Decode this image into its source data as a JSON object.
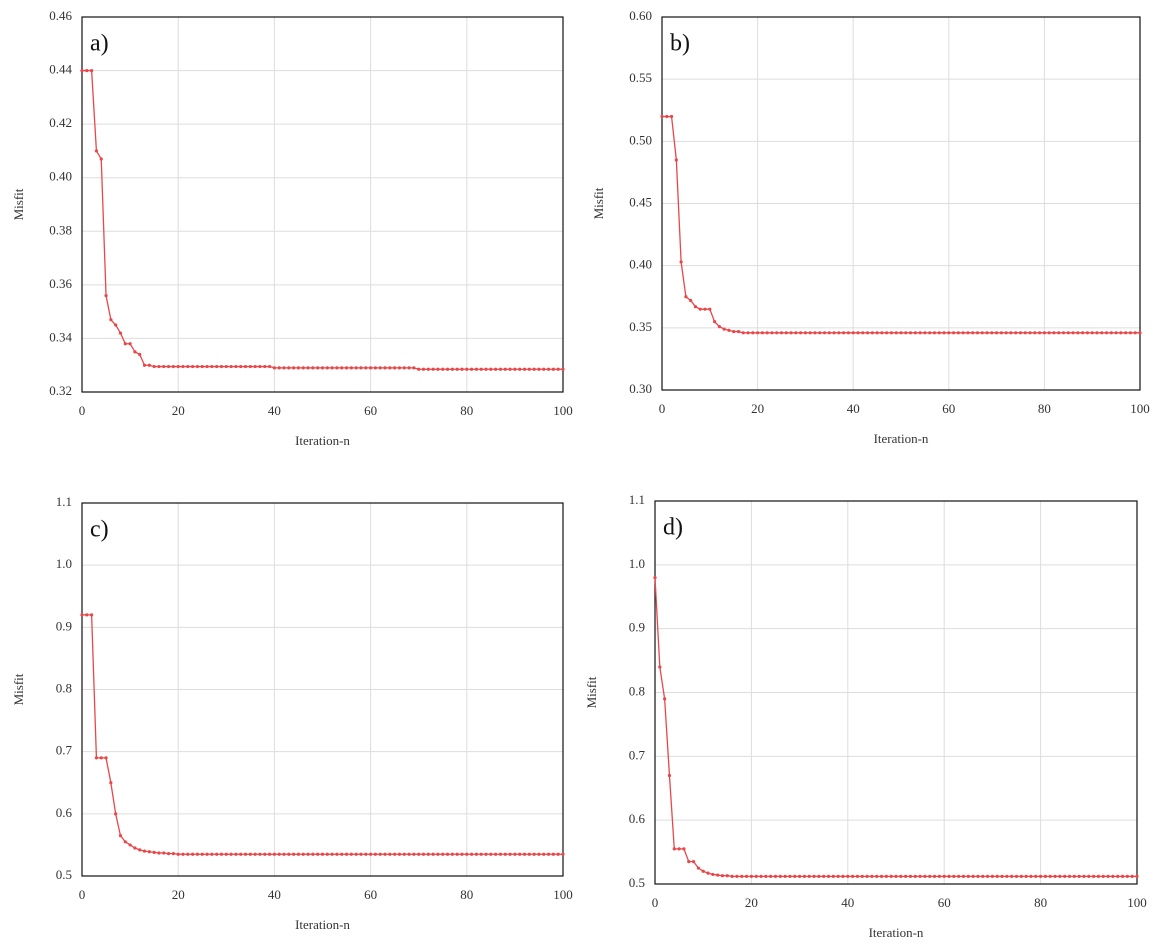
{
  "chart_data": [
    {
      "type": "line",
      "panel_label": "a)",
      "xlabel": "Iteration-n",
      "ylabel": "Misfit",
      "xlim": [
        0,
        100
      ],
      "ylim": [
        0.32,
        0.46
      ],
      "xticks": [
        0,
        20,
        40,
        60,
        80,
        100
      ],
      "yticks": [
        0.32,
        0.34,
        0.36,
        0.38,
        {
          "value": 0.4,
          "label": "0.40"
        },
        0.42,
        0.44,
        0.46
      ],
      "grid": true,
      "x": [
        0,
        1,
        2,
        3,
        4,
        5,
        6,
        7,
        8,
        9,
        10,
        11,
        12,
        13,
        14,
        15,
        16,
        17,
        18,
        19,
        20,
        21,
        22,
        23,
        24,
        25,
        26,
        27,
        28,
        29,
        30,
        31,
        32,
        33,
        34,
        35,
        36,
        37,
        38,
        39,
        40,
        41,
        42,
        43,
        44,
        45,
        46,
        47,
        48,
        49,
        50,
        51,
        52,
        53,
        54,
        55,
        56,
        57,
        58,
        59,
        60,
        61,
        62,
        63,
        64,
        65,
        66,
        67,
        68,
        69,
        70,
        71,
        72,
        73,
        74,
        75,
        76,
        77,
        78,
        79,
        80,
        81,
        82,
        83,
        84,
        85,
        86,
        87,
        88,
        89,
        90,
        91,
        92,
        93,
        94,
        95,
        96,
        97,
        98,
        99,
        100
      ],
      "series": [
        {
          "color": "#e8474a",
          "values": [
            0.44,
            0.44,
            0.44,
            0.41,
            0.407,
            0.356,
            0.347,
            0.345,
            0.342,
            0.338,
            0.338,
            0.335,
            0.334,
            0.33,
            0.33,
            0.3295,
            0.3295,
            0.3295,
            0.3295,
            0.3295,
            0.3295,
            0.3295,
            0.3295,
            0.3295,
            0.3295,
            0.3295,
            0.3295,
            0.3295,
            0.3295,
            0.3295,
            0.3295,
            0.3295,
            0.3295,
            0.3295,
            0.3295,
            0.3295,
            0.3295,
            0.3295,
            0.3295,
            0.3295,
            0.329,
            0.329,
            0.329,
            0.329,
            0.329,
            0.329,
            0.329,
            0.329,
            0.329,
            0.329,
            0.329,
            0.329,
            0.329,
            0.329,
            0.329,
            0.329,
            0.329,
            0.329,
            0.329,
            0.329,
            0.329,
            0.329,
            0.329,
            0.329,
            0.329,
            0.329,
            0.329,
            0.329,
            0.329,
            0.329,
            0.3285,
            0.3285,
            0.3285,
            0.3285,
            0.3285,
            0.3285,
            0.3285,
            0.3285,
            0.3285,
            0.3285,
            0.3285,
            0.3285,
            0.3285,
            0.3285,
            0.3285,
            0.3285,
            0.3285,
            0.3285,
            0.3285,
            0.3285,
            0.3285,
            0.3285,
            0.3285,
            0.3285,
            0.3285,
            0.3285,
            0.3285,
            0.3285,
            0.3285,
            0.3285,
            0.3285
          ]
        }
      ]
    },
    {
      "type": "line",
      "panel_label": "b)",
      "xlabel": "Iteration-n",
      "ylabel": "Misfit",
      "xlim": [
        0,
        100
      ],
      "ylim": [
        0.3,
        0.6
      ],
      "xticks": [
        0,
        20,
        40,
        60,
        80,
        100
      ],
      "yticks": [
        {
          "value": 0.3,
          "label": "0.30"
        },
        0.35,
        {
          "value": 0.4,
          "label": "0.40"
        },
        0.45,
        {
          "value": 0.5,
          "label": "0.50"
        },
        0.55,
        {
          "value": 0.6,
          "label": "0.60"
        }
      ],
      "grid": true,
      "x": [
        0,
        1,
        2,
        3,
        4,
        5,
        6,
        7,
        8,
        9,
        10,
        11,
        12,
        13,
        14,
        15,
        16,
        17,
        18,
        19,
        20,
        21,
        22,
        23,
        24,
        25,
        26,
        27,
        28,
        29,
        30,
        31,
        32,
        33,
        34,
        35,
        36,
        37,
        38,
        39,
        40,
        41,
        42,
        43,
        44,
        45,
        46,
        47,
        48,
        49,
        50,
        51,
        52,
        53,
        54,
        55,
        56,
        57,
        58,
        59,
        60,
        61,
        62,
        63,
        64,
        65,
        66,
        67,
        68,
        69,
        70,
        71,
        72,
        73,
        74,
        75,
        76,
        77,
        78,
        79,
        80,
        81,
        82,
        83,
        84,
        85,
        86,
        87,
        88,
        89,
        90,
        91,
        92,
        93,
        94,
        95,
        96,
        97,
        98,
        99,
        100
      ],
      "series": [
        {
          "color": "#e8474a",
          "values": [
            0.52,
            0.52,
            0.52,
            0.485,
            0.403,
            0.375,
            0.372,
            0.367,
            0.365,
            0.365,
            0.365,
            0.355,
            0.351,
            0.349,
            0.348,
            0.347,
            0.347,
            0.346,
            0.346,
            0.346,
            0.346,
            0.346,
            0.346,
            0.346,
            0.346,
            0.346,
            0.346,
            0.346,
            0.346,
            0.346,
            0.346,
            0.346,
            0.346,
            0.346,
            0.346,
            0.346,
            0.346,
            0.346,
            0.346,
            0.346,
            0.346,
            0.346,
            0.346,
            0.346,
            0.346,
            0.346,
            0.346,
            0.346,
            0.346,
            0.346,
            0.346,
            0.346,
            0.346,
            0.346,
            0.346,
            0.346,
            0.346,
            0.346,
            0.346,
            0.346,
            0.346,
            0.346,
            0.346,
            0.346,
            0.346,
            0.346,
            0.346,
            0.346,
            0.346,
            0.346,
            0.346,
            0.346,
            0.346,
            0.346,
            0.346,
            0.346,
            0.346,
            0.346,
            0.346,
            0.346,
            0.346,
            0.346,
            0.346,
            0.346,
            0.346,
            0.346,
            0.346,
            0.346,
            0.346,
            0.346,
            0.346,
            0.346,
            0.346,
            0.346,
            0.346,
            0.346,
            0.346,
            0.346,
            0.346,
            0.346,
            0.346
          ]
        }
      ]
    },
    {
      "type": "line",
      "panel_label": "c)",
      "xlabel": "Iteration-n",
      "ylabel": "Misfit",
      "xlim": [
        0,
        100
      ],
      "ylim": [
        0.5,
        1.1
      ],
      "xticks": [
        0,
        20,
        40,
        60,
        80,
        100
      ],
      "yticks": [
        0.5,
        0.6,
        0.7,
        0.8,
        0.9,
        {
          "value": 1,
          "label": "1.0"
        },
        1.1
      ],
      "grid": true,
      "x": [
        0,
        1,
        2,
        3,
        4,
        5,
        6,
        7,
        8,
        9,
        10,
        11,
        12,
        13,
        14,
        15,
        16,
        17,
        18,
        19,
        20,
        21,
        22,
        23,
        24,
        25,
        26,
        27,
        28,
        29,
        30,
        31,
        32,
        33,
        34,
        35,
        36,
        37,
        38,
        39,
        40,
        41,
        42,
        43,
        44,
        45,
        46,
        47,
        48,
        49,
        50,
        51,
        52,
        53,
        54,
        55,
        56,
        57,
        58,
        59,
        60,
        61,
        62,
        63,
        64,
        65,
        66,
        67,
        68,
        69,
        70,
        71,
        72,
        73,
        74,
        75,
        76,
        77,
        78,
        79,
        80,
        81,
        82,
        83,
        84,
        85,
        86,
        87,
        88,
        89,
        90,
        91,
        92,
        93,
        94,
        95,
        96,
        97,
        98,
        99,
        100
      ],
      "series": [
        {
          "color": "#e8474a",
          "values": [
            0.92,
            0.92,
            0.92,
            0.69,
            0.69,
            0.69,
            0.65,
            0.6,
            0.565,
            0.555,
            0.55,
            0.545,
            0.542,
            0.54,
            0.539,
            0.538,
            0.537,
            0.537,
            0.536,
            0.536,
            0.535,
            0.535,
            0.535,
            0.535,
            0.535,
            0.535,
            0.535,
            0.535,
            0.535,
            0.535,
            0.535,
            0.535,
            0.535,
            0.535,
            0.535,
            0.535,
            0.535,
            0.535,
            0.535,
            0.535,
            0.535,
            0.535,
            0.535,
            0.535,
            0.535,
            0.535,
            0.535,
            0.535,
            0.535,
            0.535,
            0.535,
            0.535,
            0.535,
            0.535,
            0.535,
            0.535,
            0.535,
            0.535,
            0.535,
            0.535,
            0.535,
            0.535,
            0.535,
            0.535,
            0.535,
            0.535,
            0.535,
            0.535,
            0.535,
            0.535,
            0.535,
            0.535,
            0.535,
            0.535,
            0.535,
            0.535,
            0.535,
            0.535,
            0.535,
            0.535,
            0.535,
            0.535,
            0.535,
            0.535,
            0.535,
            0.535,
            0.535,
            0.535,
            0.535,
            0.535,
            0.535,
            0.535,
            0.535,
            0.535,
            0.535,
            0.535,
            0.535,
            0.535,
            0.535,
            0.535,
            0.535
          ]
        }
      ]
    },
    {
      "type": "line",
      "panel_label": "d)",
      "xlabel": "Iteration-n",
      "ylabel": "Misfit",
      "xlim": [
        0,
        100
      ],
      "ylim": [
        0.5,
        1.1
      ],
      "xticks": [
        0,
        20,
        40,
        60,
        80,
        100
      ],
      "yticks": [
        0.5,
        0.6,
        0.7,
        0.8,
        0.9,
        {
          "value": 1,
          "label": "1.0"
        },
        1.1
      ],
      "grid": true,
      "x": [
        0,
        1,
        2,
        3,
        4,
        5,
        6,
        7,
        8,
        9,
        10,
        11,
        12,
        13,
        14,
        15,
        16,
        17,
        18,
        19,
        20,
        21,
        22,
        23,
        24,
        25,
        26,
        27,
        28,
        29,
        30,
        31,
        32,
        33,
        34,
        35,
        36,
        37,
        38,
        39,
        40,
        41,
        42,
        43,
        44,
        45,
        46,
        47,
        48,
        49,
        50,
        51,
        52,
        53,
        54,
        55,
        56,
        57,
        58,
        59,
        60,
        61,
        62,
        63,
        64,
        65,
        66,
        67,
        68,
        69,
        70,
        71,
        72,
        73,
        74,
        75,
        76,
        77,
        78,
        79,
        80,
        81,
        82,
        83,
        84,
        85,
        86,
        87,
        88,
        89,
        90,
        91,
        92,
        93,
        94,
        95,
        96,
        97,
        98,
        99,
        100
      ],
      "series": [
        {
          "color": "#e8474a",
          "values": [
            0.98,
            0.84,
            0.79,
            0.67,
            0.555,
            0.555,
            0.555,
            0.535,
            0.535,
            0.525,
            0.52,
            0.517,
            0.515,
            0.514,
            0.513,
            0.513,
            0.512,
            0.512,
            0.512,
            0.512,
            0.512,
            0.512,
            0.512,
            0.512,
            0.512,
            0.512,
            0.512,
            0.512,
            0.512,
            0.512,
            0.512,
            0.512,
            0.512,
            0.512,
            0.512,
            0.512,
            0.512,
            0.512,
            0.512,
            0.512,
            0.512,
            0.512,
            0.512,
            0.512,
            0.512,
            0.512,
            0.512,
            0.512,
            0.512,
            0.512,
            0.512,
            0.512,
            0.512,
            0.512,
            0.512,
            0.512,
            0.512,
            0.512,
            0.512,
            0.512,
            0.512,
            0.512,
            0.512,
            0.512,
            0.512,
            0.512,
            0.512,
            0.512,
            0.512,
            0.512,
            0.512,
            0.512,
            0.512,
            0.512,
            0.512,
            0.512,
            0.512,
            0.512,
            0.512,
            0.512,
            0.512,
            0.512,
            0.512,
            0.512,
            0.512,
            0.512,
            0.512,
            0.512,
            0.512,
            0.512,
            0.512,
            0.512,
            0.512,
            0.512,
            0.512,
            0.512,
            0.512,
            0.512,
            0.512,
            0.512,
            0.512
          ]
        }
      ]
    }
  ]
}
